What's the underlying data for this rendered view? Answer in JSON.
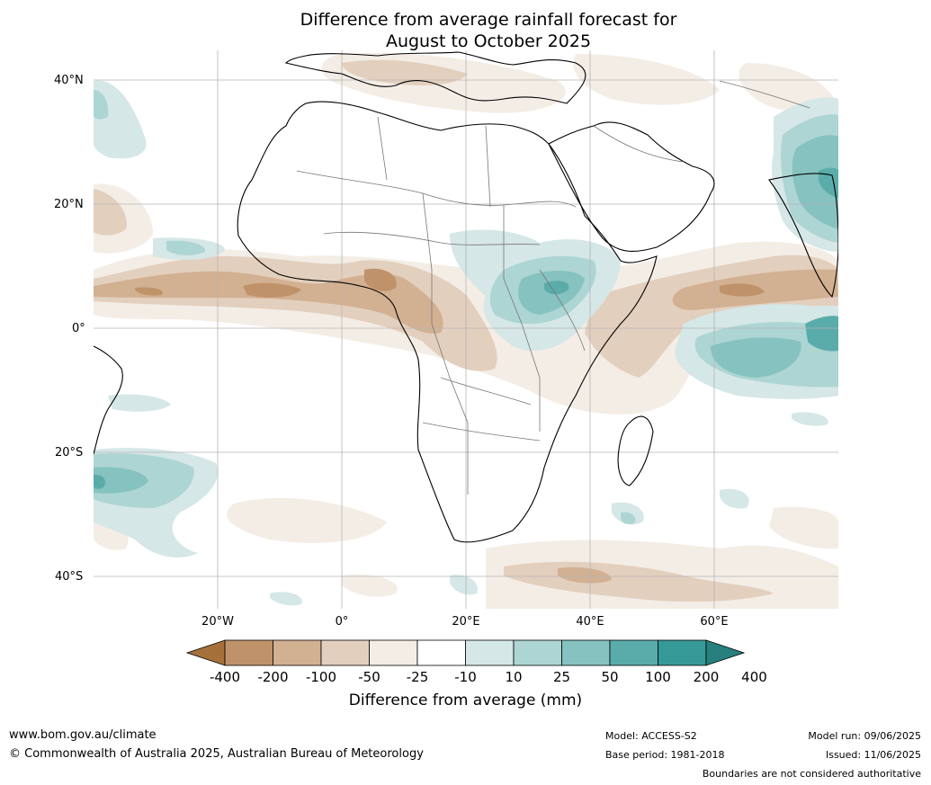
{
  "title": {
    "line1": "Difference from average rainfall forecast for",
    "line2": "August to October 2025"
  },
  "map": {
    "lat_labels": [
      "40°N",
      "20°N",
      "0°",
      "20°S",
      "40°S"
    ],
    "lon_labels": [
      "20°W",
      "0°",
      "20°E",
      "40°E",
      "60°E"
    ]
  },
  "colorbar": {
    "title": "Difference from average (mm)",
    "ticks": [
      "-400",
      "-200",
      "-100",
      "-50",
      "-25",
      "-10",
      "10",
      "25",
      "50",
      "100",
      "200",
      "400"
    ],
    "colors": [
      "#a5703a",
      "#bf926a",
      "#d2b092",
      "#e3cfbd",
      "#f3ede6",
      "#ffffff",
      "#d5e7e6",
      "#add5d3",
      "#85c2c0",
      "#5aacaa",
      "#359a97",
      "#27807d"
    ]
  },
  "footer": {
    "website": "www.bom.gov.au/climate",
    "copyright": "© Commonwealth of Australia 2025, Australian Bureau of Meteorology",
    "model": "Model: ACCESS-S2",
    "base_period": "Base period: 1981-2018",
    "model_run": "Model run: 09/06/2025",
    "issued": "Issued: 11/06/2025",
    "disclaimer": "Boundaries are not considered authoritative"
  }
}
